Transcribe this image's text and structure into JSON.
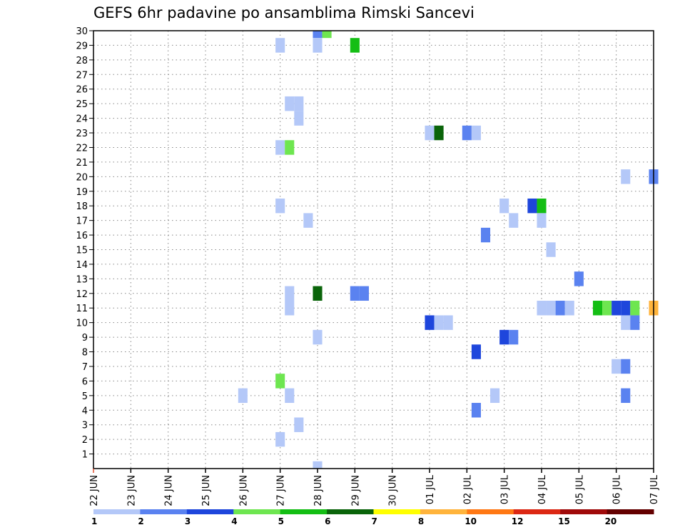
{
  "chart_data": {
    "type": "heatmap",
    "title": "GEFS 6hr padavine po ansamblima Rimski Sancevi",
    "xlabel": "",
    "ylabel": "",
    "x_ticks": [
      "22 JUN",
      "23 JUN",
      "24 JUN",
      "25 JUN",
      "26 JUN",
      "27 JUN",
      "28 JUN",
      "29 JUN",
      "30 JUN",
      "01 JUL",
      "02 JUL",
      "03 JUL",
      "04 JUL",
      "05 JUL",
      "06 JUL",
      "07 JUL"
    ],
    "x_range_days": [
      0,
      15
    ],
    "y_ticks": [
      "1",
      "2",
      "3",
      "4",
      "5",
      "6",
      "7",
      "8",
      "9",
      "10",
      "11",
      "12",
      "13",
      "14",
      "15",
      "16",
      "17",
      "18",
      "19",
      "20",
      "21",
      "22",
      "23",
      "24",
      "25",
      "26",
      "27",
      "28",
      "29",
      "30"
    ],
    "y_range": [
      0,
      30
    ],
    "grid": true,
    "colorbar": {
      "colors": [
        "#b4c8f8",
        "#5a82f0",
        "#1e46dc",
        "#6ee650",
        "#14be14",
        "#0a640a",
        "#ffff00",
        "#ffb43c",
        "#ff7814",
        "#dc2814",
        "#a00a0a",
        "#640000"
      ],
      "labels": [
        "1",
        "2",
        "3",
        "4",
        "5",
        "6",
        "7",
        "8",
        "10",
        "12",
        "15",
        "20"
      ]
    },
    "cells": [
      {
        "day": 6.0,
        "member": 30,
        "bin": 1
      },
      {
        "day": 6.25,
        "member": 30,
        "bin": 3
      },
      {
        "day": 5.0,
        "member": 29,
        "bin": 0
      },
      {
        "day": 6.0,
        "member": 29,
        "bin": 0
      },
      {
        "day": 7.0,
        "member": 29,
        "bin": 4
      },
      {
        "day": 5.25,
        "member": 25,
        "bin": 0
      },
      {
        "day": 5.5,
        "member": 25,
        "bin": 0
      },
      {
        "day": 5.5,
        "member": 24,
        "bin": 0
      },
      {
        "day": 9.0,
        "member": 23,
        "bin": 0
      },
      {
        "day": 9.25,
        "member": 23,
        "bin": 5
      },
      {
        "day": 10.0,
        "member": 23,
        "bin": 1
      },
      {
        "day": 10.25,
        "member": 23,
        "bin": 0
      },
      {
        "day": 5.0,
        "member": 22,
        "bin": 0
      },
      {
        "day": 5.25,
        "member": 22,
        "bin": 3
      },
      {
        "day": 14.25,
        "member": 20,
        "bin": 0
      },
      {
        "day": 15.0,
        "member": 20,
        "bin": 1
      },
      {
        "day": 5.0,
        "member": 18,
        "bin": 0
      },
      {
        "day": 11.0,
        "member": 18,
        "bin": 0
      },
      {
        "day": 11.75,
        "member": 18,
        "bin": 2
      },
      {
        "day": 12.0,
        "member": 18,
        "bin": 4
      },
      {
        "day": 5.75,
        "member": 17,
        "bin": 0
      },
      {
        "day": 11.25,
        "member": 17,
        "bin": 0
      },
      {
        "day": 12.0,
        "member": 17,
        "bin": 0
      },
      {
        "day": 10.5,
        "member": 16,
        "bin": 1
      },
      {
        "day": 12.25,
        "member": 15,
        "bin": 0
      },
      {
        "day": 13.0,
        "member": 13,
        "bin": 1
      },
      {
        "day": 5.25,
        "member": 12,
        "bin": 0
      },
      {
        "day": 6.0,
        "member": 12,
        "bin": 5
      },
      {
        "day": 7.0,
        "member": 12,
        "bin": 1
      },
      {
        "day": 7.25,
        "member": 12,
        "bin": 1
      },
      {
        "day": 5.25,
        "member": 11,
        "bin": 0
      },
      {
        "day": 12.0,
        "member": 11,
        "bin": 0
      },
      {
        "day": 12.25,
        "member": 11,
        "bin": 0
      },
      {
        "day": 12.5,
        "member": 11,
        "bin": 1
      },
      {
        "day": 12.75,
        "member": 11,
        "bin": 0
      },
      {
        "day": 13.5,
        "member": 11,
        "bin": 4
      },
      {
        "day": 13.75,
        "member": 11,
        "bin": 3
      },
      {
        "day": 14.0,
        "member": 11,
        "bin": 2
      },
      {
        "day": 14.25,
        "member": 11,
        "bin": 2
      },
      {
        "day": 14.5,
        "member": 11,
        "bin": 3
      },
      {
        "day": 15.0,
        "member": 11,
        "bin": 7
      },
      {
        "day": 9.0,
        "member": 10,
        "bin": 2
      },
      {
        "day": 9.25,
        "member": 10,
        "bin": 0
      },
      {
        "day": 9.5,
        "member": 10,
        "bin": 0
      },
      {
        "day": 14.25,
        "member": 10,
        "bin": 0
      },
      {
        "day": 14.5,
        "member": 10,
        "bin": 1
      },
      {
        "day": 6.0,
        "member": 9,
        "bin": 0
      },
      {
        "day": 11.0,
        "member": 9,
        "bin": 2
      },
      {
        "day": 11.25,
        "member": 9,
        "bin": 1
      },
      {
        "day": 10.25,
        "member": 8,
        "bin": 2
      },
      {
        "day": 14.0,
        "member": 7,
        "bin": 0
      },
      {
        "day": 14.25,
        "member": 7,
        "bin": 1
      },
      {
        "day": 5.0,
        "member": 6,
        "bin": 3
      },
      {
        "day": 4.0,
        "member": 5,
        "bin": 0
      },
      {
        "day": 5.25,
        "member": 5,
        "bin": 0
      },
      {
        "day": 10.75,
        "member": 5,
        "bin": 0
      },
      {
        "day": 14.25,
        "member": 5,
        "bin": 1
      },
      {
        "day": 10.25,
        "member": 4,
        "bin": 1
      },
      {
        "day": 5.5,
        "member": 3,
        "bin": 0
      },
      {
        "day": 5.0,
        "member": 2,
        "bin": 0
      },
      {
        "day": 6.0,
        "member": 0,
        "bin": 0
      }
    ]
  }
}
